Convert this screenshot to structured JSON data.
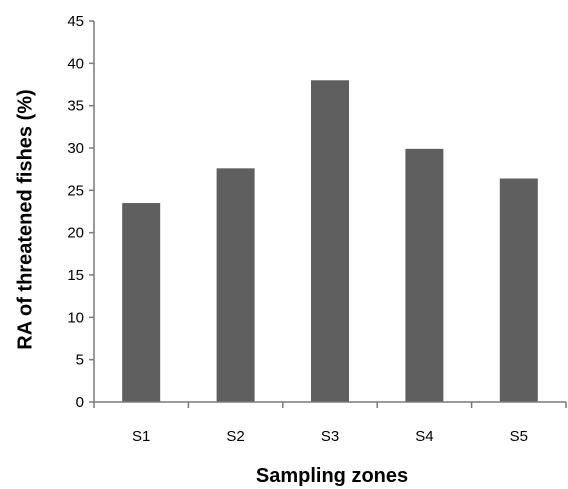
{
  "chart_data": {
    "type": "bar",
    "title": "",
    "xlabel": "Sampling zones",
    "ylabel": "RA of threatened fishes (%)",
    "categories": [
      "S1",
      "S2",
      "S3",
      "S4",
      "S5"
    ],
    "values": [
      23.5,
      27.6,
      38.0,
      29.9,
      26.4
    ],
    "ylim": [
      0,
      45
    ],
    "yticks": [
      0,
      5,
      10,
      15,
      20,
      25,
      30,
      35,
      40,
      45
    ],
    "grid": false,
    "legend": "none",
    "colors": {
      "bar": "#5f5f5f",
      "axis": "#7a7a7a"
    }
  }
}
